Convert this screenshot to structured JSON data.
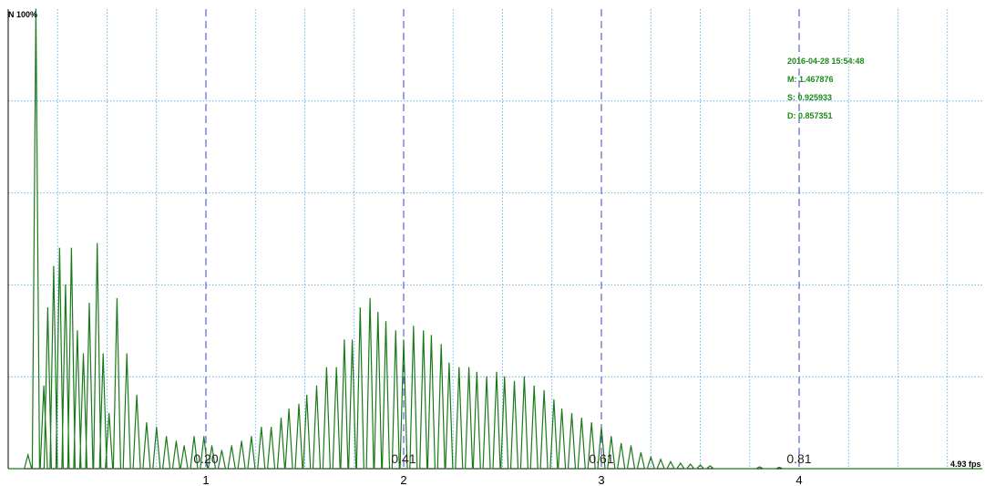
{
  "chart_data": {
    "type": "line",
    "y_max_label": "N 100%",
    "x_end_label": "4.93 fps",
    "xlim": [
      0,
      4.93
    ],
    "ylim": [
      0,
      100
    ],
    "x_ticks": [
      "1",
      "2",
      "3",
      "4"
    ],
    "x_tick_values": [
      1,
      2,
      3,
      4
    ],
    "markers": [
      {
        "x": 1,
        "label": "0.20"
      },
      {
        "x": 2,
        "label": "0.41"
      },
      {
        "x": 3,
        "label": "0.61"
      },
      {
        "x": 4,
        "label": "0.81"
      }
    ],
    "info": {
      "timestamp": "2016-04-28 15:54:48",
      "m": "M: 1.467876",
      "s": "S: 0.925933",
      "d": "D: 0.857351"
    },
    "grid": true,
    "colors": {
      "line": "#1a7a1a",
      "grid": "#4da6e0",
      "marker": "#3344cc",
      "info": "#1a8a1a"
    },
    "series": [
      {
        "peaks": [
          [
            0.1,
            3
          ],
          [
            0.14,
            100
          ],
          [
            0.18,
            18
          ],
          [
            0.2,
            35
          ],
          [
            0.23,
            44
          ],
          [
            0.26,
            48
          ],
          [
            0.29,
            40
          ],
          [
            0.32,
            48
          ],
          [
            0.35,
            30
          ],
          [
            0.38,
            25
          ],
          [
            0.41,
            36
          ],
          [
            0.45,
            49
          ],
          [
            0.48,
            25
          ],
          [
            0.51,
            12
          ],
          [
            0.55,
            37
          ],
          [
            0.6,
            25
          ],
          [
            0.65,
            16
          ],
          [
            0.7,
            10
          ],
          [
            0.75,
            9
          ],
          [
            0.8,
            7
          ],
          [
            0.85,
            6
          ],
          [
            0.89,
            5
          ],
          [
            0.94,
            7
          ],
          [
            0.99,
            7
          ],
          [
            1.03,
            5
          ],
          [
            1.08,
            4
          ],
          [
            1.13,
            5
          ],
          [
            1.18,
            6
          ],
          [
            1.23,
            7
          ],
          [
            1.28,
            9
          ],
          [
            1.33,
            9
          ],
          [
            1.38,
            11
          ],
          [
            1.42,
            13
          ],
          [
            1.47,
            14
          ],
          [
            1.51,
            16
          ],
          [
            1.56,
            18
          ],
          [
            1.61,
            22
          ],
          [
            1.66,
            22
          ],
          [
            1.7,
            28
          ],
          [
            1.74,
            28
          ],
          [
            1.78,
            35
          ],
          [
            1.83,
            37
          ],
          [
            1.87,
            34
          ],
          [
            1.91,
            32
          ],
          [
            1.96,
            30
          ],
          [
            2.0,
            28
          ],
          [
            2.05,
            31
          ],
          [
            2.1,
            30
          ],
          [
            2.14,
            29
          ],
          [
            2.19,
            27
          ],
          [
            2.23,
            23
          ],
          [
            2.28,
            22
          ],
          [
            2.33,
            22
          ],
          [
            2.37,
            21
          ],
          [
            2.42,
            20
          ],
          [
            2.47,
            21
          ],
          [
            2.51,
            20
          ],
          [
            2.56,
            19
          ],
          [
            2.61,
            20
          ],
          [
            2.66,
            18
          ],
          [
            2.71,
            17
          ],
          [
            2.76,
            15
          ],
          [
            2.8,
            13
          ],
          [
            2.85,
            12
          ],
          [
            2.9,
            11
          ],
          [
            2.95,
            10
          ],
          [
            3.0,
            9
          ],
          [
            3.05,
            7
          ],
          [
            3.1,
            5.5
          ],
          [
            3.15,
            5
          ],
          [
            3.2,
            3.5
          ],
          [
            3.25,
            2.5
          ],
          [
            3.3,
            2
          ],
          [
            3.35,
            1.5
          ],
          [
            3.4,
            1.2
          ],
          [
            3.45,
            1
          ],
          [
            3.5,
            0.8
          ],
          [
            3.55,
            0.6
          ],
          [
            3.8,
            0.4
          ],
          [
            3.9,
            0.3
          ]
        ]
      }
    ]
  }
}
